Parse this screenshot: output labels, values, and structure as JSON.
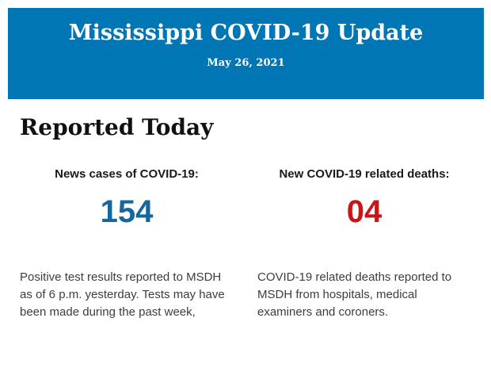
{
  "header": {
    "title": "Mississippi COVID-19 Update",
    "date": "May 26, 2021",
    "background_color": "#0076b4",
    "text_color": "#ffffff"
  },
  "section": {
    "heading": "Reported Today"
  },
  "stats": [
    {
      "label": "News cases of COVID-19:",
      "value": "154",
      "value_color": "#16689c",
      "description": "Positive test results reported to MSDH as of 6 p.m. yesterday. Tests may have been made during the past week,"
    },
    {
      "label": "New COVID-19 related deaths:",
      "value": "04",
      "value_color": "#cc1417",
      "description": "COVID-19 related deaths reported to MSDH from hospitals, medical examiners and coroners."
    }
  ]
}
